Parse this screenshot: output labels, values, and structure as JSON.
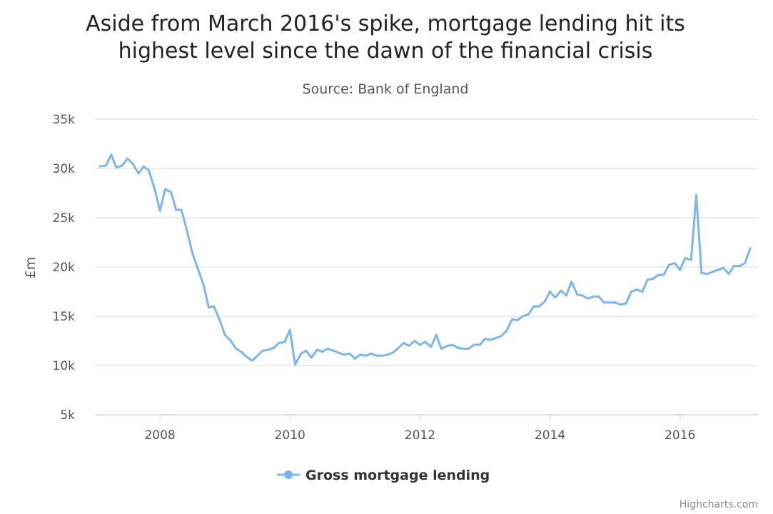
{
  "chart_data": {
    "type": "line",
    "title_lines": [
      "Aside from March 2016's spike, mortgage lending hit its",
      "highest level since the dawn of the financial crisis"
    ],
    "subtitle": "Source: Bank of England",
    "ylabel": "£m",
    "xlabel": "",
    "ylim": [
      5000,
      35000
    ],
    "yticks": [
      5000,
      10000,
      15000,
      20000,
      25000,
      30000,
      35000
    ],
    "ytick_labels": [
      "5k",
      "10k",
      "15k",
      "20k",
      "25k",
      "30k",
      "35k"
    ],
    "xlim": [
      2007.0,
      2017.2
    ],
    "xticks": [
      2008,
      2010,
      2012,
      2014,
      2016
    ],
    "xtick_labels": [
      "2008",
      "2010",
      "2012",
      "2014",
      "2016"
    ],
    "grid": true,
    "legend_position": "bottom-center",
    "series": [
      {
        "name": "Gross mortgage lending",
        "color": "#7cb5ec",
        "points": [
          [
            2007.08,
            30200
          ],
          [
            2007.17,
            30300
          ],
          [
            2007.25,
            31400
          ],
          [
            2007.33,
            30100
          ],
          [
            2007.42,
            30300
          ],
          [
            2007.5,
            31000
          ],
          [
            2007.58,
            30500
          ],
          [
            2007.67,
            29500
          ],
          [
            2007.75,
            30200
          ],
          [
            2007.83,
            29800
          ],
          [
            2007.92,
            27900
          ],
          [
            2008.0,
            25700
          ],
          [
            2008.08,
            27900
          ],
          [
            2008.17,
            27600
          ],
          [
            2008.25,
            25800
          ],
          [
            2008.33,
            25800
          ],
          [
            2008.42,
            23600
          ],
          [
            2008.5,
            21400
          ],
          [
            2008.58,
            19900
          ],
          [
            2008.67,
            18200
          ],
          [
            2008.75,
            15900
          ],
          [
            2008.83,
            16000
          ],
          [
            2008.92,
            14600
          ],
          [
            2009.0,
            13100
          ],
          [
            2009.08,
            12600
          ],
          [
            2009.17,
            11700
          ],
          [
            2009.25,
            11400
          ],
          [
            2009.33,
            10900
          ],
          [
            2009.42,
            10500
          ],
          [
            2009.5,
            11000
          ],
          [
            2009.58,
            11500
          ],
          [
            2009.67,
            11600
          ],
          [
            2009.75,
            11800
          ],
          [
            2009.83,
            12300
          ],
          [
            2009.92,
            12400
          ],
          [
            2010.0,
            13600
          ],
          [
            2010.08,
            10100
          ],
          [
            2010.17,
            11200
          ],
          [
            2010.25,
            11500
          ],
          [
            2010.33,
            10800
          ],
          [
            2010.42,
            11600
          ],
          [
            2010.5,
            11400
          ],
          [
            2010.58,
            11700
          ],
          [
            2010.67,
            11500
          ],
          [
            2010.75,
            11300
          ],
          [
            2010.83,
            11100
          ],
          [
            2010.92,
            11200
          ],
          [
            2011.0,
            10700
          ],
          [
            2011.08,
            11100
          ],
          [
            2011.17,
            11000
          ],
          [
            2011.25,
            11200
          ],
          [
            2011.33,
            11000
          ],
          [
            2011.42,
            11000
          ],
          [
            2011.5,
            11100
          ],
          [
            2011.58,
            11300
          ],
          [
            2011.67,
            11800
          ],
          [
            2011.75,
            12300
          ],
          [
            2011.83,
            12000
          ],
          [
            2011.92,
            12500
          ],
          [
            2012.0,
            12100
          ],
          [
            2012.08,
            12400
          ],
          [
            2012.17,
            11900
          ],
          [
            2012.25,
            13100
          ],
          [
            2012.33,
            11700
          ],
          [
            2012.42,
            12000
          ],
          [
            2012.5,
            12100
          ],
          [
            2012.58,
            11800
          ],
          [
            2012.67,
            11700
          ],
          [
            2012.75,
            11700
          ],
          [
            2012.83,
            12100
          ],
          [
            2012.92,
            12100
          ],
          [
            2013.0,
            12700
          ],
          [
            2013.08,
            12600
          ],
          [
            2013.17,
            12800
          ],
          [
            2013.25,
            13000
          ],
          [
            2013.33,
            13500
          ],
          [
            2013.42,
            14700
          ],
          [
            2013.5,
            14600
          ],
          [
            2013.58,
            15000
          ],
          [
            2013.67,
            15200
          ],
          [
            2013.75,
            16000
          ],
          [
            2013.83,
            16000
          ],
          [
            2013.92,
            16500
          ],
          [
            2014.0,
            17500
          ],
          [
            2014.08,
            16900
          ],
          [
            2014.17,
            17600
          ],
          [
            2014.25,
            17100
          ],
          [
            2014.33,
            18500
          ],
          [
            2014.42,
            17200
          ],
          [
            2014.5,
            17100
          ],
          [
            2014.58,
            16800
          ],
          [
            2014.67,
            17000
          ],
          [
            2014.75,
            17000
          ],
          [
            2014.83,
            16400
          ],
          [
            2014.92,
            16400
          ],
          [
            2015.0,
            16400
          ],
          [
            2015.08,
            16200
          ],
          [
            2015.17,
            16300
          ],
          [
            2015.25,
            17500
          ],
          [
            2015.33,
            17700
          ],
          [
            2015.42,
            17500
          ],
          [
            2015.5,
            18700
          ],
          [
            2015.58,
            18800
          ],
          [
            2015.67,
            19200
          ],
          [
            2015.75,
            19200
          ],
          [
            2015.83,
            20200
          ],
          [
            2015.92,
            20400
          ],
          [
            2016.0,
            19700
          ],
          [
            2016.08,
            20900
          ],
          [
            2016.17,
            20700
          ],
          [
            2016.25,
            27300
          ],
          [
            2016.33,
            19400
          ],
          [
            2016.42,
            19300
          ],
          [
            2016.5,
            19500
          ],
          [
            2016.58,
            19700
          ],
          [
            2016.67,
            19900
          ],
          [
            2016.75,
            19300
          ],
          [
            2016.83,
            20100
          ],
          [
            2016.92,
            20100
          ],
          [
            2017.0,
            20400
          ],
          [
            2017.08,
            21900
          ]
        ]
      }
    ],
    "credits": "Highcharts.com"
  }
}
